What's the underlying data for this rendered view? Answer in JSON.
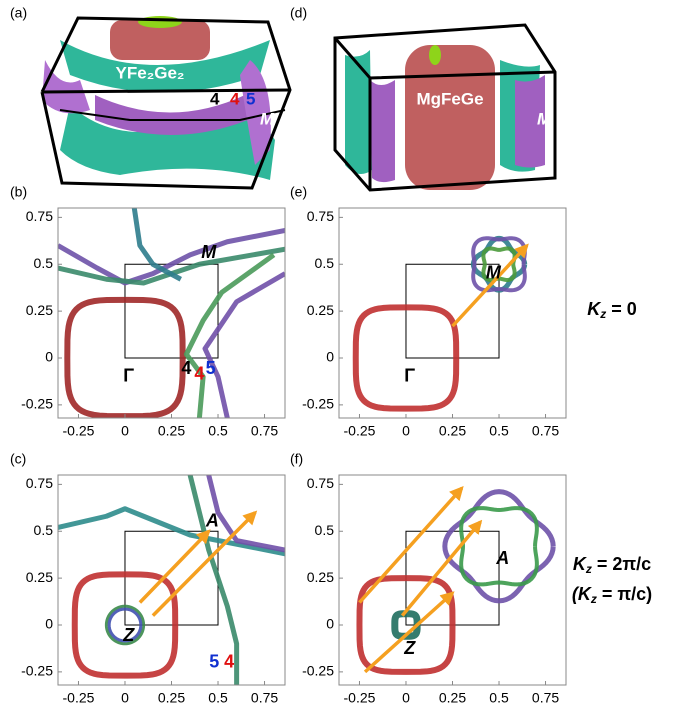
{
  "panels": [
    {
      "label": "(a)",
      "material": "YFe₂Ge₂",
      "annotations": [
        {
          "text": "4",
          "color": "#000000"
        },
        {
          "text": "4",
          "color": "#e01010"
        },
        {
          "text": "5",
          "color": "#1030d0"
        },
        {
          "text": "M",
          "color": "#ffffff"
        }
      ]
    },
    {
      "label": "(d)",
      "material": "MgFeGe",
      "annotations": [
        {
          "text": "M",
          "color": "#ffffff"
        }
      ]
    }
  ],
  "plots": [
    {
      "label": "(b)",
      "xlim": [
        -0.36,
        0.86
      ],
      "ylim": [
        -0.32,
        0.8
      ],
      "xticks": [
        -0.25,
        0,
        0.25,
        0.5,
        0.75
      ],
      "yticks": [
        -0.25,
        0,
        0.25,
        0.5,
        0.75
      ],
      "annotations": [
        {
          "text": "M",
          "color": "#000000"
        },
        {
          "text": "Γ",
          "color": "#000000"
        },
        {
          "text": "4",
          "color": "#000000"
        },
        {
          "text": "4",
          "color": "#e01010"
        },
        {
          "text": "5",
          "color": "#1030d0"
        }
      ]
    },
    {
      "label": "(e)",
      "xlim": [
        -0.36,
        0.86
      ],
      "ylim": [
        -0.32,
        0.8
      ],
      "xticks": [
        -0.25,
        0,
        0.25,
        0.5,
        0.75
      ],
      "yticks": [
        -0.25,
        0,
        0.25,
        0.5,
        0.75
      ],
      "annotations": [
        {
          "text": "M",
          "color": "#000000"
        },
        {
          "text": "Γ",
          "color": "#000000"
        }
      ]
    },
    {
      "label": "(c)",
      "xlim": [
        -0.36,
        0.86
      ],
      "ylim": [
        -0.32,
        0.8
      ],
      "xticks": [
        -0.25,
        0,
        0.25,
        0.5,
        0.75
      ],
      "yticks": [
        -0.25,
        0,
        0.25,
        0.5,
        0.75
      ],
      "annotations": [
        {
          "text": "A",
          "color": "#000000"
        },
        {
          "text": "Z",
          "color": "#000000"
        },
        {
          "text": "5",
          "color": "#1030d0"
        },
        {
          "text": "4",
          "color": "#e01010"
        }
      ]
    },
    {
      "label": "(f)",
      "xlim": [
        -0.36,
        0.86
      ],
      "ylim": [
        -0.32,
        0.8
      ],
      "xticks": [
        -0.25,
        0,
        0.25,
        0.5,
        0.75
      ],
      "yticks": [
        -0.25,
        0,
        0.25,
        0.5,
        0.75
      ],
      "annotations": [
        {
          "text": "A",
          "color": "#000000"
        },
        {
          "text": "Z",
          "color": "#000000"
        }
      ]
    }
  ],
  "row_labels": [
    {
      "main": "K",
      "sub": "z",
      "rest": " = 0"
    },
    {
      "main": "K",
      "sub": "z",
      "rest": " = 2π/c"
    },
    {
      "main": "(K",
      "sub": "z",
      "rest": " = π/c)"
    }
  ]
}
